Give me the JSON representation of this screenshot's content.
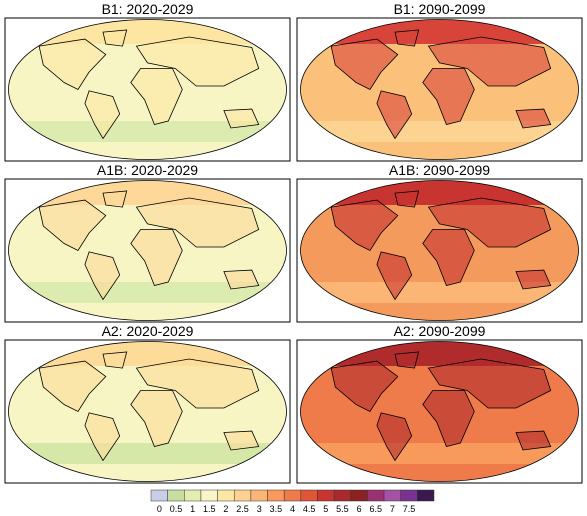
{
  "panels": [
    {
      "title": "B1: 2020-2029"
    },
    {
      "title": "B1: 2090-2099"
    },
    {
      "title": "A1B: 2020-2029"
    },
    {
      "title": "A1B: 2090-2099"
    },
    {
      "title": "A2: 2020-2029"
    },
    {
      "title": "A2: 2090-2099"
    }
  ],
  "colorbar": {
    "ticks": [
      0,
      0.5,
      1,
      1.5,
      2,
      2.5,
      3,
      3.5,
      4,
      4.5,
      5,
      5.5,
      6,
      6.5,
      7,
      7.5
    ],
    "colors": [
      "#c9cde6",
      "#c6dfa0",
      "#e4eeb0",
      "#f8f6c4",
      "#fde7a4",
      "#fdd192",
      "#fbb574",
      "#f79a5c",
      "#ef7a4a",
      "#e05538",
      "#c83430",
      "#a82a2a",
      "#8a2222",
      "#9a3272",
      "#a552a5",
      "#7a3292",
      "#3a1850"
    ]
  }
}
